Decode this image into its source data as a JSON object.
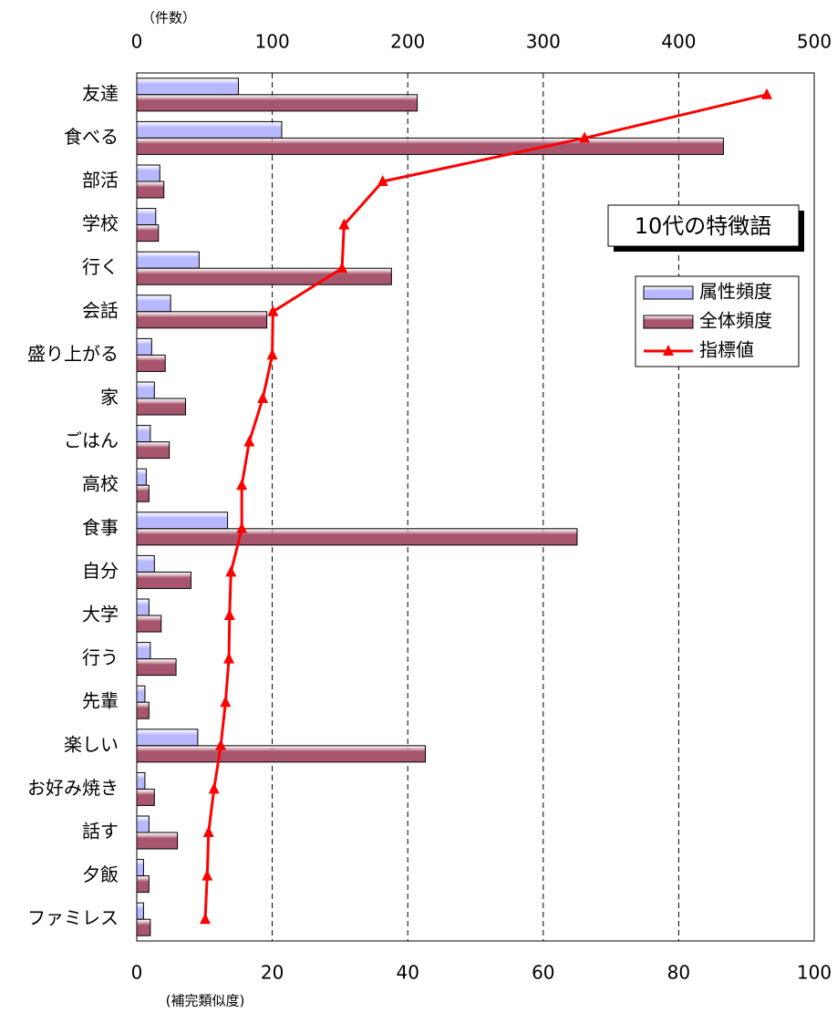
{
  "chart_data": {
    "type": "bar",
    "title": "10代の特徴語",
    "x_label": "（件数）",
    "x2_label": "(補完類似度)",
    "categories": [
      "友達",
      "食べる",
      "部活",
      "学校",
      "行く",
      "会話",
      "盛り上がる",
      "家",
      "ごはん",
      "高校",
      "食事",
      "自分",
      "大学",
      "行う",
      "先輩",
      "楽しい",
      "お好み焼き",
      "話す",
      "夕飯",
      "ファミレス"
    ],
    "series": [
      {
        "name": "属性頻度",
        "type": "bar",
        "color": "#b8b8ff",
        "values": [
          75,
          107,
          17,
          14,
          46,
          25,
          11,
          13,
          10,
          7,
          67,
          13,
          9,
          10,
          6,
          45,
          6,
          9,
          5,
          5
        ]
      },
      {
        "name": "全体頻度",
        "type": "bar",
        "color": "#a8566e",
        "values": [
          207,
          433,
          20,
          16,
          188,
          96,
          21,
          36,
          24,
          9,
          325,
          40,
          18,
          29,
          9,
          213,
          13,
          30,
          9,
          10
        ]
      },
      {
        "name": "指標値",
        "type": "line",
        "axis": "x2",
        "color": "#ff0000",
        "values": [
          93.0,
          66.1,
          36.3,
          30.6,
          30.3,
          20.1,
          20.0,
          18.6,
          16.6,
          15.5,
          15.5,
          13.9,
          13.7,
          13.6,
          13.1,
          12.4,
          11.4,
          10.6,
          10.4,
          10.1
        ]
      }
    ],
    "xlim": [
      0,
      500
    ],
    "xticks": [
      0,
      100,
      200,
      300,
      400,
      500
    ],
    "x2lim": [
      0,
      100
    ],
    "x2ticks": [
      0,
      20,
      40,
      60,
      80,
      100
    ],
    "grid": true,
    "legend": "upper right"
  }
}
